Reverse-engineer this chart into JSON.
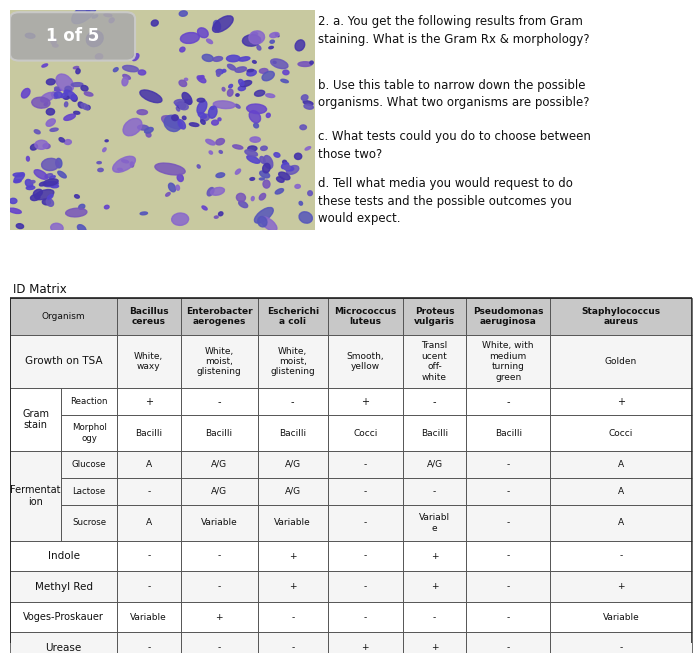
{
  "bg_color": "#ffffff",
  "img_bg": "#c8c9a8",
  "badge_text": "1 of 5",
  "badge_bg": "#b0b0b0",
  "questions": [
    "2. a. You get the following results from Gram\nstaining. What is the Gram Rx & morphology?",
    "b. Use this table to narrow down the possible\norganisms. What two organisms are possible?",
    "c. What tests could you do to choose between\nthose two?",
    "d. Tell what media you would request to do\nthese tests and the possible outcomes you\nwould expect."
  ],
  "id_matrix_label": "ID Matrix",
  "col_headers": [
    "Organism",
    "Bacillus\ncereus",
    "Enterobacter\naerogenes",
    "Escherichi\na coli",
    "Micrococcus\nluteus",
    "Proteus\nvulgaris",
    "Pseudomonas\naeruginosa",
    "Staphylococcus\naureus"
  ],
  "header_bold": [
    false,
    true,
    true,
    true,
    true,
    true,
    true,
    true
  ],
  "growth_vals": [
    "White,\nwaxy",
    "White,\nmoist,\nglistening",
    "White,\nmoist,\nglistening",
    "Smooth,\nyellow",
    "Transl\nucent\noff-\nwhite",
    "White, with\nmedium\nturning\ngreen",
    "Golden"
  ],
  "gram_reaction": [
    "+",
    "-",
    "-",
    "+",
    "-",
    "-",
    "+"
  ],
  "gram_morphology": [
    "Bacilli",
    "Bacilli",
    "Bacilli",
    "Cocci",
    "Bacilli",
    "Bacilli",
    "Cocci"
  ],
  "ferm_glucose": [
    "A",
    "A/G",
    "A/G",
    "-",
    "A/G",
    "-",
    "A"
  ],
  "ferm_lactose": [
    "-",
    "A/G",
    "A/G",
    "-",
    "-",
    "-",
    "A"
  ],
  "ferm_sucrose": [
    "A",
    "Variable",
    "Variable",
    "-",
    "Variabl\ne",
    "-",
    "A"
  ],
  "indole": [
    "-",
    "-",
    "+",
    "-",
    "+",
    "-",
    "-"
  ],
  "methyl_red": [
    "-",
    "-",
    "+",
    "-",
    "+",
    "-",
    "+"
  ],
  "vp": [
    "Variable",
    "+",
    "-",
    "-",
    "-",
    "-",
    "Variable"
  ],
  "urease": [
    "-",
    "-",
    "-",
    "+",
    "+",
    "-",
    "-"
  ],
  "header_bg": "#c8c8c8",
  "row_bg_light": "#f5f5f5",
  "row_bg_white": "#ffffff",
  "border_color": "#555555",
  "text_color": "#111111"
}
